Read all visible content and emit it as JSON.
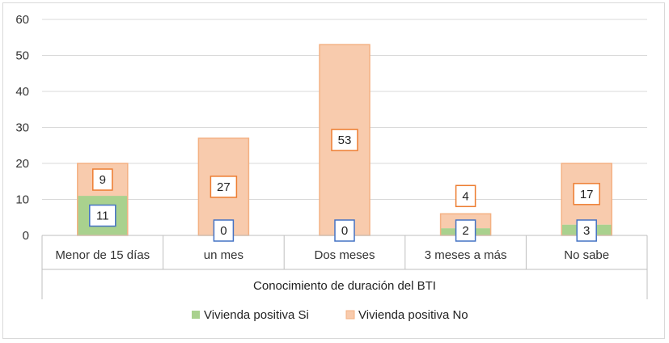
{
  "chart_data": {
    "type": "bar",
    "stacked": true,
    "categories": [
      "Menor de 15 días",
      "un mes",
      "Dos meses",
      "3 meses a más",
      "No sabe"
    ],
    "series": [
      {
        "name": "Vivienda positiva Si",
        "values": [
          11,
          0,
          0,
          2,
          3
        ],
        "color": "#a9d18e",
        "label_border": "#4472c4"
      },
      {
        "name": "Vivienda positiva No",
        "values": [
          9,
          27,
          53,
          4,
          17
        ],
        "color": "#f8cbad",
        "edge": "#f4b183",
        "label_border": "#ed7d31"
      }
    ],
    "title": "",
    "xlabel": "Conocimiento de duración del BTI",
    "ylabel": "",
    "ylim": [
      0,
      60
    ],
    "yticks": [
      0,
      10,
      20,
      30,
      40,
      50,
      60
    ],
    "grid": true,
    "legend_position": "bottom"
  }
}
